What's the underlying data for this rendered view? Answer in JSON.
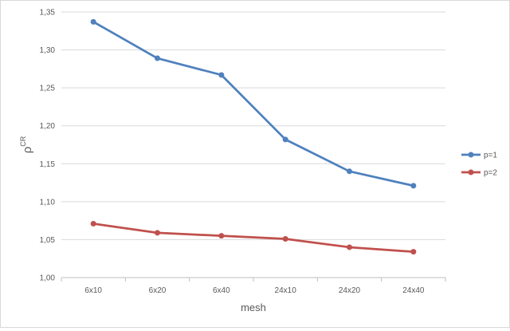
{
  "chart_data": {
    "type": "line",
    "title": "",
    "xlabel": "mesh",
    "ylabel": "ρ",
    "ylabel_superscript": "CR",
    "categories": [
      "6x10",
      "6x20",
      "6x40",
      "24x10",
      "24x20",
      "24x40"
    ],
    "series": [
      {
        "name": "p=1",
        "color": "#4f81bd",
        "values": [
          1.337,
          1.289,
          1.267,
          1.182,
          1.14,
          1.121
        ]
      },
      {
        "name": "p=2",
        "color": "#c0504d",
        "values": [
          1.071,
          1.059,
          1.055,
          1.051,
          1.04,
          1.034
        ]
      }
    ],
    "ylim": [
      1.0,
      1.35
    ],
    "yticks": [
      "1,00",
      "1,05",
      "1,10",
      "1,15",
      "1,20",
      "1,25",
      "1,30",
      "1,35"
    ],
    "grid": "horizontal",
    "legend_position": "right",
    "colors": {
      "gridline": "#d9d9d9",
      "axis": "#bfbfbf",
      "text": "#595959"
    }
  }
}
